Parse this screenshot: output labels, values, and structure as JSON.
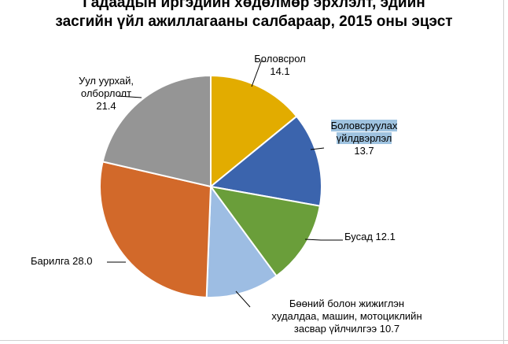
{
  "chart_data": {
    "type": "pie",
    "title_line1": "Гадаадын иргэдийн хөдөлмөр эрхлэлт, эдийн",
    "title_line2": "засгийн үйл ажиллагааны салбараар, 2015 оны эцэст",
    "slices": [
      {
        "label_lines": [
          "Боловсрол",
          "14.1"
        ],
        "value": 14.1,
        "color": "#e2ac00"
      },
      {
        "label_lines": [
          "Боловсруулах",
          "үйлдвэрлэл",
          "13.7"
        ],
        "value": 13.7,
        "color": "#3b64ad"
      },
      {
        "label_lines": [
          "Бусад 12.1"
        ],
        "value": 12.1,
        "color": "#6a9e3a"
      },
      {
        "label_lines": [
          "Бөөний болон жижиглэн",
          "худалдаа, машин, мотоциклийн",
          "засвар үйлчилгээ 10.7"
        ],
        "value": 10.7,
        "color": "#9dbde3"
      },
      {
        "label_lines": [
          "Барилга 28.0"
        ],
        "value": 28.0,
        "color": "#d2692a"
      },
      {
        "label_lines": [
          "Уул уурхай,",
          "олборлолт",
          "21.4"
        ],
        "value": 21.4,
        "color": "#959595"
      }
    ]
  }
}
